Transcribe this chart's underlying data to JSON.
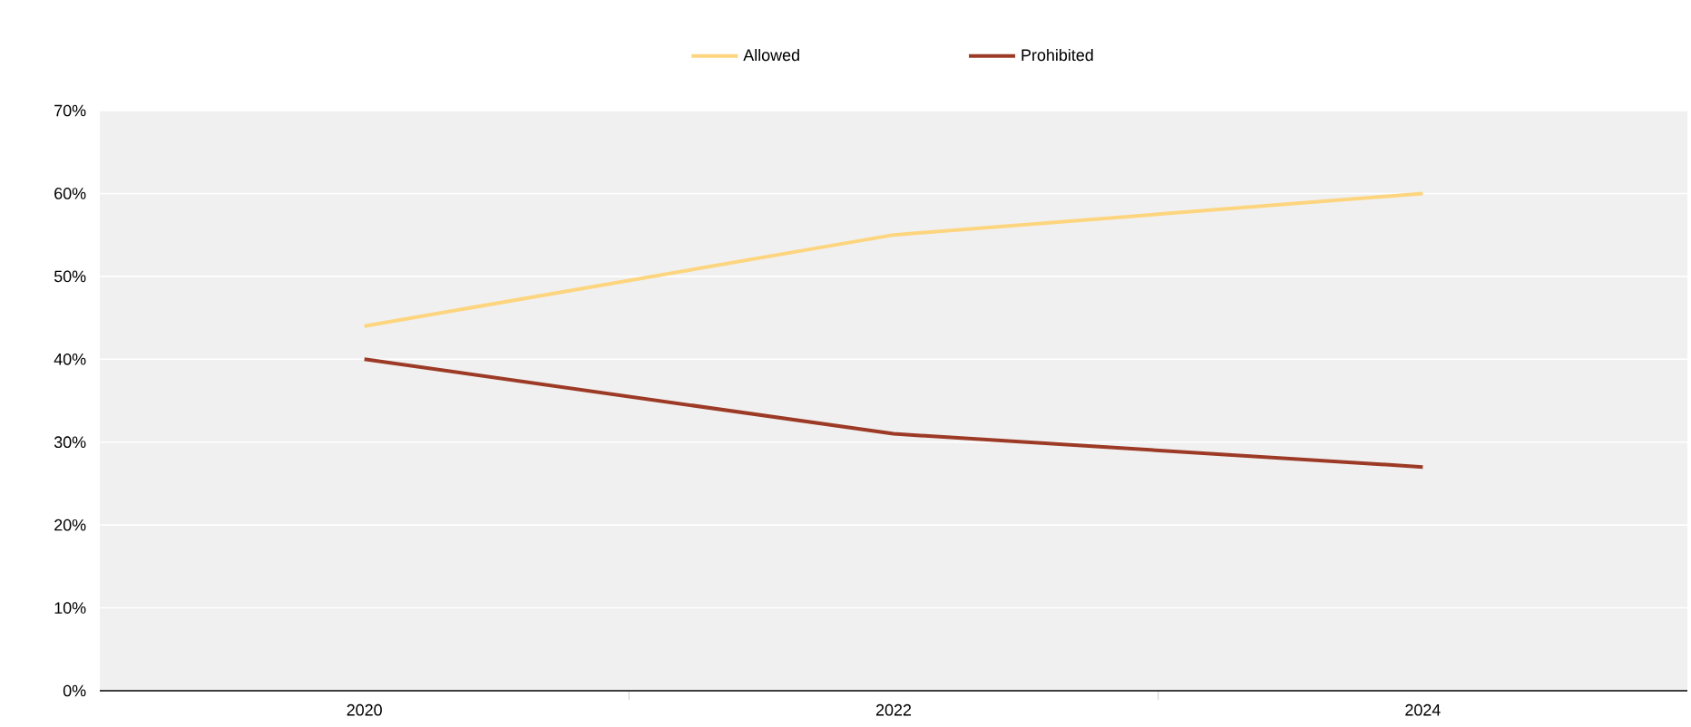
{
  "chart_data": {
    "type": "line",
    "categories": [
      "2020",
      "2022",
      "2024"
    ],
    "series": [
      {
        "name": "Allowed",
        "color": "#fdd57e",
        "values": [
          44,
          55,
          60
        ]
      },
      {
        "name": "Prohibited",
        "color": "#9c3a26",
        "values": [
          40,
          31,
          27
        ]
      }
    ],
    "ylim": [
      0,
      70
    ],
    "yticks": [
      {
        "value": 0,
        "label": "0%"
      },
      {
        "value": 10,
        "label": "10%"
      },
      {
        "value": 20,
        "label": "20%"
      },
      {
        "value": 30,
        "label": "30%"
      },
      {
        "value": 40,
        "label": "40%"
      },
      {
        "value": 50,
        "label": "50%"
      },
      {
        "value": 60,
        "label": "60%"
      },
      {
        "value": 70,
        "label": "70%"
      }
    ],
    "grid": "y",
    "legend": "top"
  }
}
